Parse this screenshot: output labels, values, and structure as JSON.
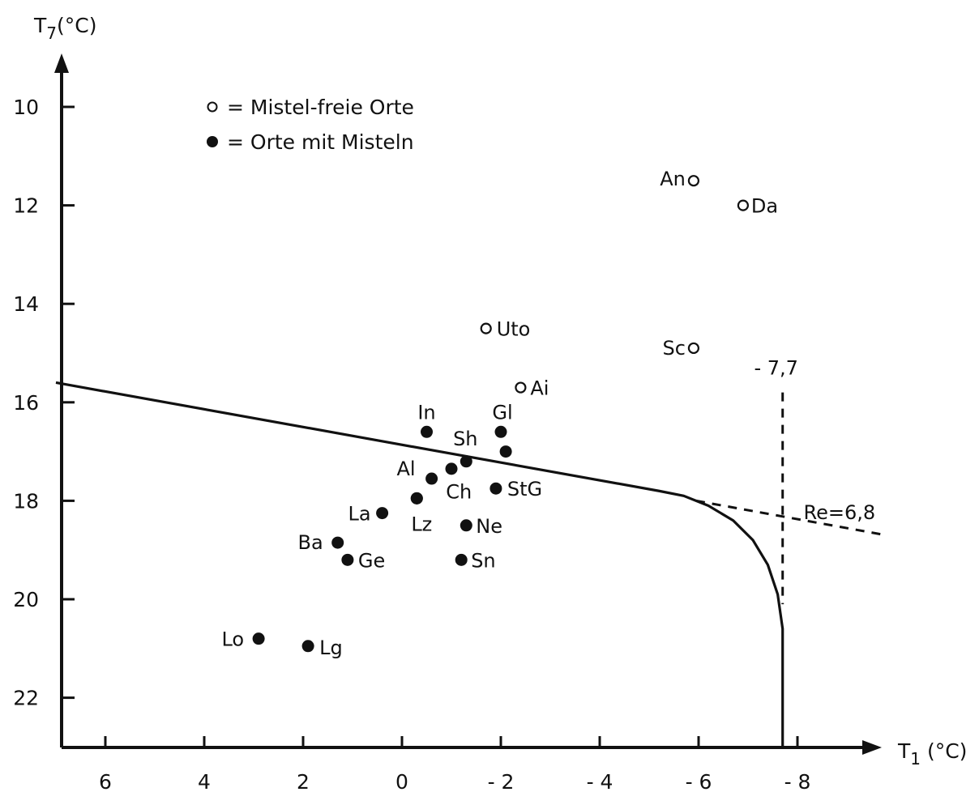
{
  "chart_data": {
    "type": "scatter",
    "title": "",
    "xlabel": "T₁ (°C)",
    "ylabel": "T₇(°C)",
    "xlim": [
      7,
      -9.5
    ],
    "ylim": [
      23,
      9
    ],
    "x_ticks": [
      6,
      4,
      2,
      0,
      -2,
      -4,
      -6,
      -8
    ],
    "x_tick_labels": [
      "6",
      "4",
      "2",
      "0",
      "- 2",
      "- 4",
      "- 6",
      "- 8"
    ],
    "y_ticks": [
      10,
      12,
      14,
      16,
      18,
      20,
      22
    ],
    "y_tick_labels": [
      "10",
      "12",
      "14",
      "16",
      "18",
      "20",
      "22"
    ],
    "grid": false,
    "legend": {
      "placement": "top-left",
      "entries": [
        {
          "symbol": "○",
          "label": "= Mistel-freie Orte"
        },
        {
          "symbol": "●",
          "label": "= Orte mit Misteln"
        }
      ]
    },
    "series": [
      {
        "name": "Mistel-freie Orte",
        "marker": "open",
        "points": [
          {
            "label": "An",
            "x": -5.9,
            "y": 11.5
          },
          {
            "label": "Da",
            "x": -6.9,
            "y": 12.0
          },
          {
            "label": "Uto",
            "x": -1.7,
            "y": 14.5
          },
          {
            "label": "Sc",
            "x": -5.9,
            "y": 14.9
          },
          {
            "label": "Ai",
            "x": -2.4,
            "y": 15.7
          }
        ]
      },
      {
        "name": "Orte mit Misteln",
        "marker": "filled",
        "points": [
          {
            "label": "In",
            "x": -0.5,
            "y": 16.6
          },
          {
            "label": "Gl",
            "x": -2.0,
            "y": 16.6
          },
          {
            "label": "",
            "x": -2.1,
            "y": 17.0
          },
          {
            "label": "Sh",
            "x": -1.3,
            "y": 17.2
          },
          {
            "label": "",
            "x": -1.0,
            "y": 17.35
          },
          {
            "label": "Al",
            "x": -0.6,
            "y": 17.55
          },
          {
            "label": "Ch",
            "x": -0.3,
            "y": 17.95
          },
          {
            "label": "StG",
            "x": -1.9,
            "y": 17.75
          },
          {
            "label": "La",
            "x": 0.4,
            "y": 18.25
          },
          {
            "label": "Lz",
            "x": -0.3,
            "y": 17.95
          },
          {
            "label": "Ne",
            "x": -1.3,
            "y": 18.5
          },
          {
            "label": "Ba",
            "x": 1.3,
            "y": 18.85
          },
          {
            "label": "Ge",
            "x": 1.1,
            "y": 19.2
          },
          {
            "label": "Sn",
            "x": -1.2,
            "y": 19.2
          },
          {
            "label": "Lo",
            "x": 2.9,
            "y": 20.8
          },
          {
            "label": "Lg",
            "x": 1.9,
            "y": 20.95
          }
        ]
      }
    ],
    "boundary_curve": [
      {
        "x": 7.0,
        "y": 15.6
      },
      {
        "x": -5.2,
        "y": 17.8
      },
      {
        "x": -5.7,
        "y": 17.9
      },
      {
        "x": -6.2,
        "y": 18.1
      },
      {
        "x": -6.7,
        "y": 18.4
      },
      {
        "x": -7.1,
        "y": 18.8
      },
      {
        "x": -7.4,
        "y": 19.3
      },
      {
        "x": -7.6,
        "y": 19.9
      },
      {
        "x": -7.7,
        "y": 20.6
      },
      {
        "x": -7.7,
        "y": 23.0
      }
    ],
    "dashed_lines": [
      {
        "label": "- 7,7",
        "points": [
          {
            "x": -7.7,
            "y": 15.8
          },
          {
            "x": -7.7,
            "y": 20.1
          }
        ]
      },
      {
        "label": "Re=6,8",
        "points": [
          {
            "x": -5.95,
            "y": 18.0
          },
          {
            "x": -9.8,
            "y": 18.7
          }
        ]
      }
    ]
  }
}
